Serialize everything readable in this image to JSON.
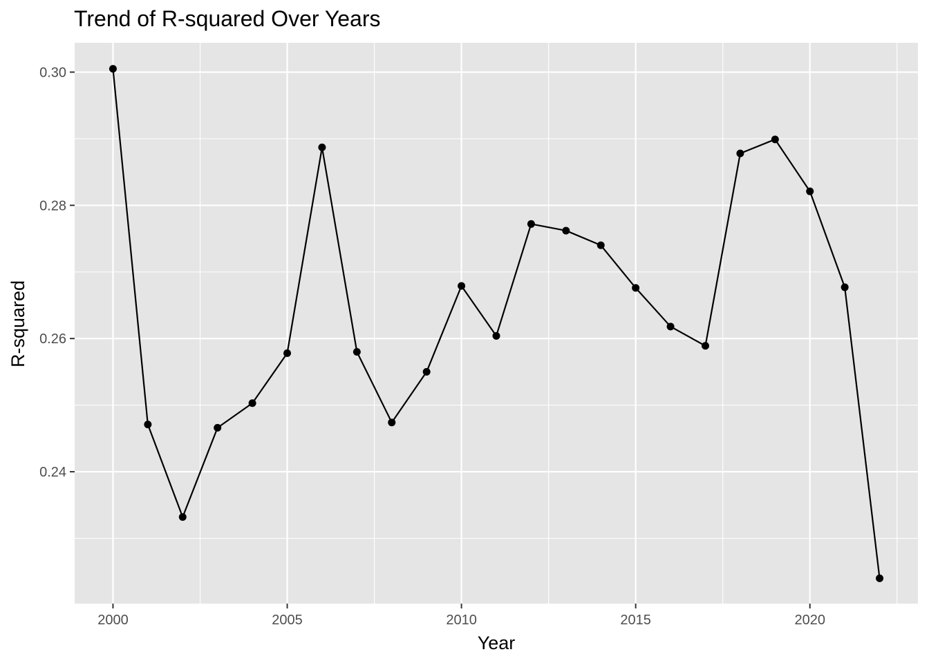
{
  "chart_data": {
    "type": "line",
    "title": "Trend of R-squared Over Years",
    "xlabel": "Year",
    "ylabel": "R-squared",
    "x": [
      2000,
      2001,
      2002,
      2003,
      2004,
      2005,
      2006,
      2007,
      2008,
      2009,
      2010,
      2011,
      2012,
      2013,
      2014,
      2015,
      2016,
      2017,
      2018,
      2019,
      2020,
      2021,
      2022
    ],
    "series": [
      {
        "values": [
          0.3005,
          0.2471,
          0.2332,
          0.2466,
          0.2503,
          0.2578,
          0.2887,
          0.258,
          0.2474,
          0.255,
          0.2679,
          0.2604,
          0.2772,
          0.2762,
          0.274,
          0.2676,
          0.2618,
          0.2589,
          0.2878,
          0.2899,
          0.2821,
          0.2677,
          0.224
        ]
      }
    ],
    "x_ticks": [
      2000,
      2005,
      2010,
      2015,
      2020
    ],
    "x_tick_labels": [
      "2000",
      "2005",
      "2010",
      "2015",
      "2020"
    ],
    "y_ticks": [
      0.24,
      0.26,
      0.28,
      0.3
    ],
    "y_tick_labels": [
      "0.24",
      "0.26",
      "0.28",
      "0.30"
    ],
    "xlim": [
      1998.9,
      2023.1
    ],
    "ylim": [
      0.2202,
      0.3044
    ],
    "grid": true,
    "colors": {
      "panel_background": "#e5e5e5",
      "grid_line": "#ffffff",
      "series_line": "#000000",
      "point": "#000000",
      "tick_text": "#4d4d4d",
      "tick_mark": "#333333"
    }
  }
}
